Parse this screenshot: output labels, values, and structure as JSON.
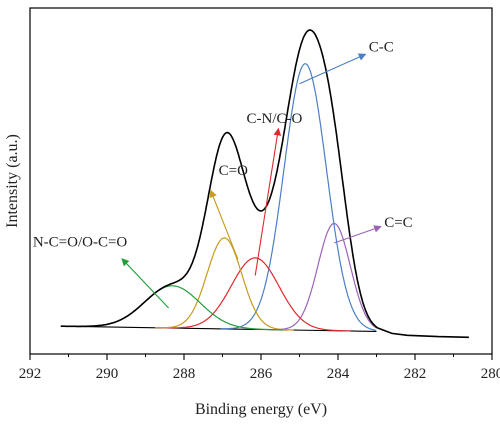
{
  "chart_data": {
    "type": "line",
    "title": "",
    "xlabel": "Binding energy (eV)",
    "ylabel": "Intensity (a.u.)",
    "xlim": [
      292,
      280
    ],
    "ylim": [
      0,
      1
    ],
    "x_reversed": true,
    "x_ticks": [
      "292",
      "290",
      "288",
      "286",
      "284",
      "282",
      "280"
    ],
    "x_tick_values": [
      292,
      290,
      288,
      286,
      284,
      282,
      280
    ],
    "grid": false,
    "legend": "none",
    "y_ticks_shown": false,
    "baseline_start": 0.064,
    "baseline_end": 0.048,
    "baseline_x": [
      291.2,
      283.0
    ],
    "envelope_shoulder": {
      "center": 286.95,
      "sigma": 0.48,
      "amplitude": 0.2
    },
    "envelope_tail": {
      "x": [
        283.0,
        282.6,
        282.2,
        281.8,
        281.4,
        281.0,
        280.6
      ],
      "y": [
        0.06,
        0.042,
        0.036,
        0.034,
        0.032,
        0.031,
        0.03
      ]
    },
    "series": [
      {
        "name": "C-C",
        "color": "#4a7fc4",
        "center": 284.85,
        "sigma": 0.55,
        "height": 0.82
      },
      {
        "name": "C=C",
        "color": "#9b63b8",
        "center": 284.1,
        "sigma": 0.42,
        "height": 0.33
      },
      {
        "name": "C-N/C-O",
        "color": "#e0292d",
        "center": 286.15,
        "sigma": 0.62,
        "height": 0.22
      },
      {
        "name": "C=O",
        "color": "#c89b1a",
        "center": 286.95,
        "sigma": 0.45,
        "height": 0.28
      },
      {
        "name": "N-C=O/O-C=O",
        "color": "#1f9e3a",
        "center": 288.3,
        "sigma": 0.72,
        "height": 0.13
      }
    ],
    "envelope": {
      "name": "",
      "color": "#000000"
    },
    "annotations": [
      {
        "text": "C-C",
        "series": "C-C",
        "arrow_to": [
          285.0,
          0.81
        ],
        "arrow_from": [
          283.3,
          0.9
        ],
        "label_at": [
          283.2,
          0.91
        ]
      },
      {
        "text": "C=C",
        "series": "C=C",
        "arrow_to": [
          284.1,
          0.32
        ],
        "arrow_from": [
          282.9,
          0.37
        ],
        "label_at": [
          282.8,
          0.37
        ]
      },
      {
        "text": "C-N/C-O",
        "series": "C-N/C-O",
        "arrow_to": [
          286.15,
          0.22
        ],
        "arrow_from": [
          285.55,
          0.67
        ],
        "label_at": [
          285.65,
          0.69
        ]
      },
      {
        "text": "C=O",
        "series": "C=O",
        "arrow_to": [
          286.6,
          0.27
        ],
        "arrow_from": [
          287.3,
          0.48
        ],
        "label_at": [
          287.1,
          0.53
        ]
      },
      {
        "text": "N-C=O/O-C=O",
        "series": "N-C=O/O-C=O",
        "arrow_to": [
          288.4,
          0.12
        ],
        "arrow_from": [
          289.6,
          0.27
        ],
        "label_at": [
          290.7,
          0.31
        ]
      }
    ]
  }
}
